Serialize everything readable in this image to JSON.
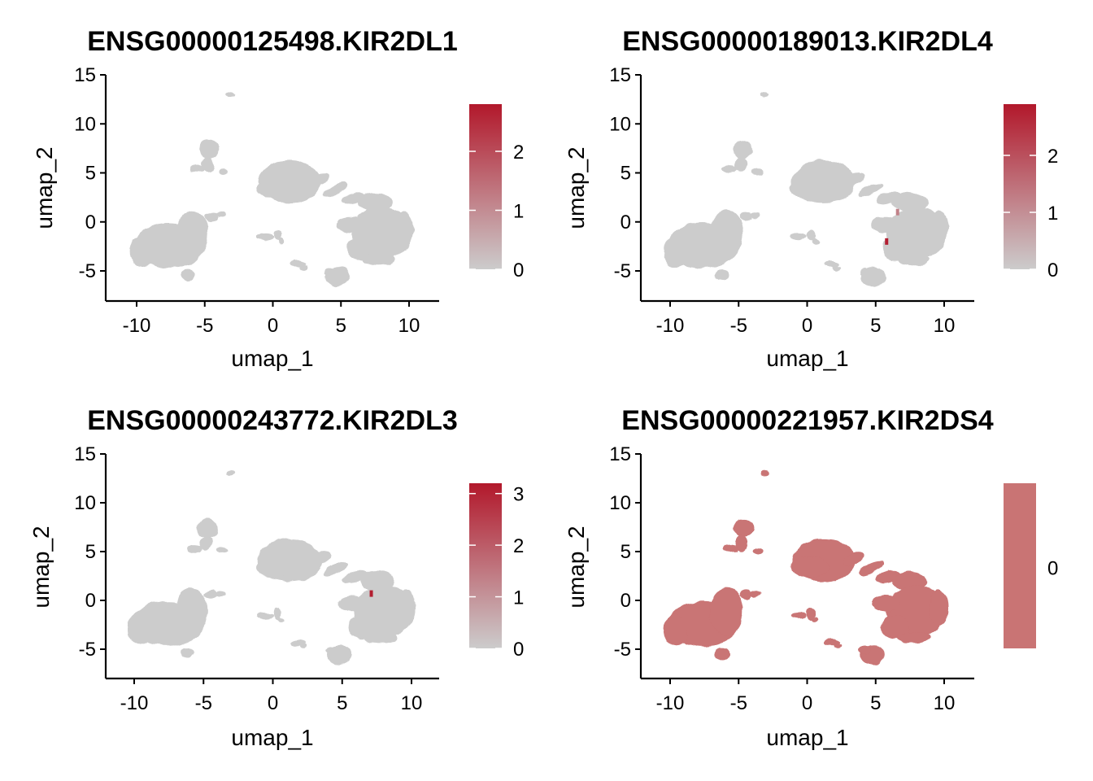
{
  "figure": {
    "title": "",
    "colors": {
      "low": "#cccccc",
      "high": "#b2182b",
      "uniform": "#c97474"
    }
  },
  "chart_data": [
    {
      "type": "scatter",
      "title": "ENSG00000125498.KIR2DL1",
      "xlabel": "umap_1",
      "ylabel": "umap_2",
      "xlim": [
        -12,
        12
      ],
      "ylim": [
        -8,
        15
      ],
      "x_ticks": [
        -10,
        -5,
        0,
        5,
        10
      ],
      "y_ticks": [
        -5,
        0,
        5,
        10,
        15
      ],
      "legend": {
        "position": "right",
        "min": 0,
        "max": 2.8,
        "ticks": [
          0,
          1,
          2
        ]
      },
      "uniform": false,
      "highlights": []
    },
    {
      "type": "scatter",
      "title": "ENSG00000189013.KIR2DL4",
      "xlabel": "umap_1",
      "ylabel": "umap_2",
      "xlim": [
        -12,
        12
      ],
      "ylim": [
        -8,
        15
      ],
      "x_ticks": [
        -10,
        -5,
        0,
        5,
        10
      ],
      "y_ticks": [
        -5,
        0,
        5,
        10,
        15
      ],
      "legend": {
        "position": "right",
        "min": 0,
        "max": 2.9,
        "ticks": [
          0,
          1,
          2
        ]
      },
      "uniform": false,
      "highlights": [
        {
          "x": 5.8,
          "y": -2.0,
          "value": 2.8
        },
        {
          "x": 6.6,
          "y": 1.0,
          "value": 1.2
        }
      ]
    },
    {
      "type": "scatter",
      "title": "ENSG00000243772.KIR2DL3",
      "xlabel": "umap_1",
      "ylabel": "umap_2",
      "xlim": [
        -12,
        12
      ],
      "ylim": [
        -8,
        15
      ],
      "x_ticks": [
        -10,
        -5,
        0,
        5,
        10
      ],
      "y_ticks": [
        -5,
        0,
        5,
        10,
        15
      ],
      "legend": {
        "position": "right",
        "min": 0,
        "max": 3.2,
        "ticks": [
          0,
          1,
          2,
          3
        ]
      },
      "uniform": false,
      "highlights": [
        {
          "x": 7.1,
          "y": 0.7,
          "value": 3.1
        }
      ]
    },
    {
      "type": "scatter",
      "title": "ENSG00000221957.KIR2DS4",
      "xlabel": "umap_1",
      "ylabel": "umap_2",
      "xlim": [
        -12,
        12
      ],
      "ylim": [
        -8,
        15
      ],
      "x_ticks": [
        -10,
        -5,
        0,
        5,
        10
      ],
      "y_ticks": [
        -5,
        0,
        5,
        10,
        15
      ],
      "legend": {
        "position": "right",
        "min": 0,
        "max": 0,
        "ticks": [
          0
        ]
      },
      "uniform": true,
      "highlights": []
    }
  ]
}
